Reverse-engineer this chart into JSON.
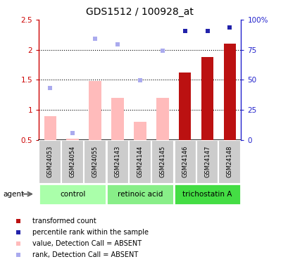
{
  "title": "GDS1512 / 100928_at",
  "samples": [
    "GSM24053",
    "GSM24054",
    "GSM24055",
    "GSM24143",
    "GSM24144",
    "GSM24145",
    "GSM24146",
    "GSM24147",
    "GSM24148"
  ],
  "bar_values": [
    0.9,
    0.52,
    1.48,
    1.2,
    0.8,
    1.2,
    1.62,
    1.88,
    2.1
  ],
  "bar_colors": [
    "#ffbbbb",
    "#ffbbbb",
    "#ffbbbb",
    "#ffbbbb",
    "#ffbbbb",
    "#ffbbbb",
    "#bb1111",
    "#bb1111",
    "#bb1111"
  ],
  "rank_values": [
    1.37,
    0.62,
    2.18,
    2.09,
    1.49,
    1.99,
    2.31,
    2.31,
    2.37
  ],
  "rank_colors": [
    "#aaaaee",
    "#aaaaee",
    "#aaaaee",
    "#aaaaee",
    "#aaaaee",
    "#aaaaee",
    "#2222aa",
    "#2222aa",
    "#2222aa"
  ],
  "ylim_left": [
    0.5,
    2.5
  ],
  "ylim_right": [
    0,
    100
  ],
  "yticks_left": [
    0.5,
    1.0,
    1.5,
    2.0,
    2.5
  ],
  "ytick_labels_left": [
    "0.5",
    "1",
    "1.5",
    "2",
    "2.5"
  ],
  "yticks_right": [
    0,
    25,
    50,
    75,
    100
  ],
  "ytick_labels_right": [
    "0",
    "25",
    "50",
    "75",
    "100%"
  ],
  "left_axis_color": "#cc0000",
  "right_axis_color": "#2222cc",
  "sample_bg": "#cccccc",
  "group_colors": [
    "#aaffaa",
    "#88ee88",
    "#44dd44"
  ],
  "group_info": [
    {
      "label": "control",
      "start": 0,
      "end": 2
    },
    {
      "label": "retinoic acid",
      "start": 3,
      "end": 5
    },
    {
      "label": "trichostatin A",
      "start": 6,
      "end": 8
    }
  ],
  "legend_items": [
    {
      "color": "#bb1111",
      "label": "transformed count"
    },
    {
      "color": "#2222aa",
      "label": "percentile rank within the sample"
    },
    {
      "color": "#ffbbbb",
      "label": "value, Detection Call = ABSENT"
    },
    {
      "color": "#aaaaee",
      "label": "rank, Detection Call = ABSENT"
    }
  ]
}
